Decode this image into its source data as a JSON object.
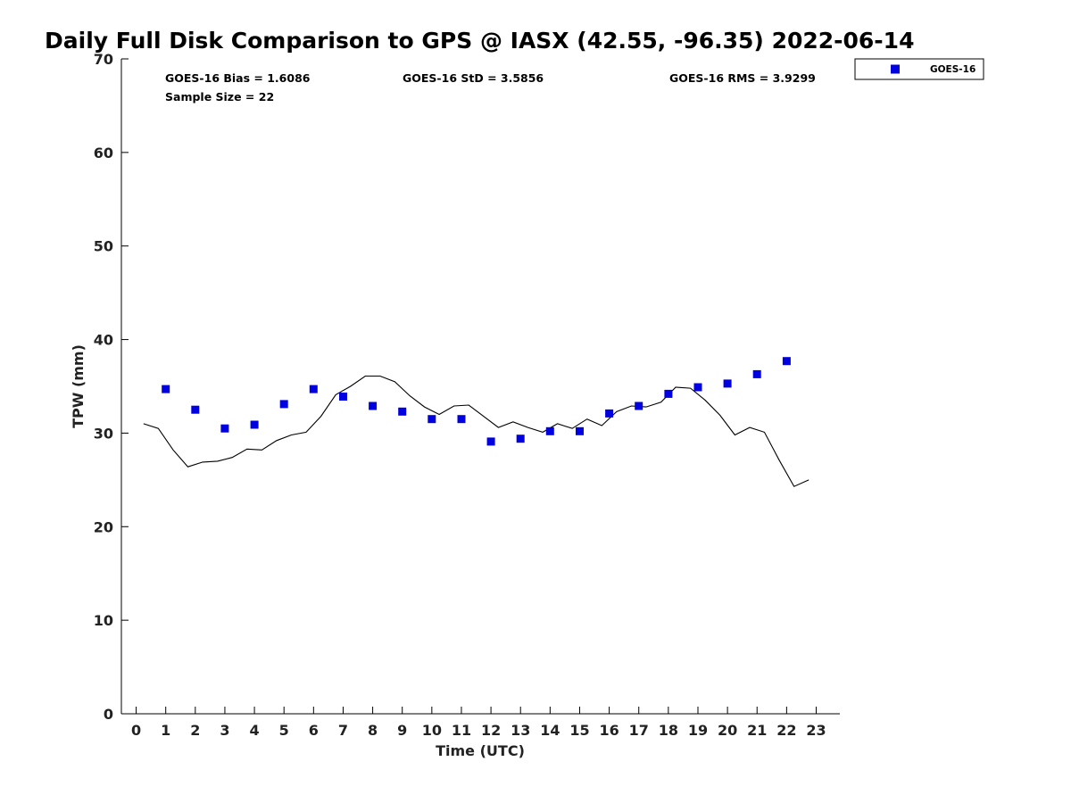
{
  "title": "Daily Full Disk Comparison to GPS @ IASX (42.55, -96.35) 2022-06-14",
  "stats": {
    "bias": "GOES-16 Bias = 1.6086",
    "std": "GOES-16 StD = 3.5856",
    "rms": "GOES-16 RMS = 3.9299",
    "sample_size": "Sample Size = 22"
  },
  "legend": {
    "label": "GOES-16",
    "color": "#0000e0"
  },
  "chart_data": {
    "type": "scatter",
    "title": "Daily Full Disk Comparison to GPS @ IASX (42.55, -96.35) 2022-06-14",
    "xlabel": "Time (UTC)",
    "ylabel": "TPW (mm)",
    "xlim": [
      -0.5,
      23.8
    ],
    "ylim": [
      0,
      70
    ],
    "xticks": [
      "0",
      "1",
      "2",
      "3",
      "4",
      "5",
      "6",
      "7",
      "8",
      "9",
      "10",
      "11",
      "12",
      "13",
      "14",
      "15",
      "16",
      "17",
      "18",
      "19",
      "20",
      "21",
      "22",
      "23"
    ],
    "yticks": [
      "0",
      "10",
      "20",
      "30",
      "40",
      "50",
      "60",
      "70"
    ],
    "grid": false,
    "legend_position": "top-right",
    "series": [
      {
        "name": "GOES-16",
        "kind": "scatter",
        "marker": "square",
        "color": "#0000e0",
        "x": [
          1,
          2,
          3,
          4,
          5,
          6,
          7,
          8,
          9,
          10,
          11,
          12,
          13,
          14,
          15,
          16,
          17,
          18,
          19,
          20,
          21,
          22
        ],
        "y": [
          34.7,
          32.5,
          30.5,
          30.9,
          33.1,
          34.7,
          33.9,
          32.9,
          32.3,
          31.5,
          31.5,
          29.1,
          29.4,
          30.2,
          30.2,
          32.1,
          32.9,
          34.2,
          34.9,
          35.3,
          36.3,
          37.7
        ]
      },
      {
        "kind": "line",
        "color": "#000000",
        "x": [
          0.25,
          0.75,
          1.25,
          1.75,
          2.25,
          2.75,
          3.25,
          3.75,
          4.25,
          4.75,
          5.25,
          5.75,
          6.25,
          6.75,
          7.25,
          7.75,
          8.25,
          8.75,
          9.25,
          9.75,
          10.25,
          10.75,
          11.25,
          11.75,
          12.25,
          12.75,
          13.25,
          13.75,
          14.25,
          14.75,
          15.25,
          15.75,
          16.25,
          16.75,
          17.25,
          17.75,
          18.25,
          18.75,
          19.25,
          19.75,
          20.25,
          20.75,
          21.25,
          21.75,
          22.25,
          22.75
        ],
        "y": [
          31.0,
          30.5,
          28.2,
          26.4,
          26.9,
          27.0,
          27.4,
          28.3,
          28.2,
          29.2,
          29.8,
          30.1,
          31.8,
          34.1,
          35.0,
          36.1,
          36.1,
          35.5,
          34.0,
          32.8,
          32.0,
          32.9,
          33.0,
          31.8,
          30.6,
          31.2,
          30.6,
          30.1,
          31.0,
          30.5,
          31.5,
          30.8,
          32.3,
          32.9,
          32.8,
          33.3,
          34.9,
          34.8,
          33.5,
          31.9,
          29.8,
          30.6,
          30.1,
          27.1,
          24.3,
          25.0
        ]
      }
    ]
  }
}
